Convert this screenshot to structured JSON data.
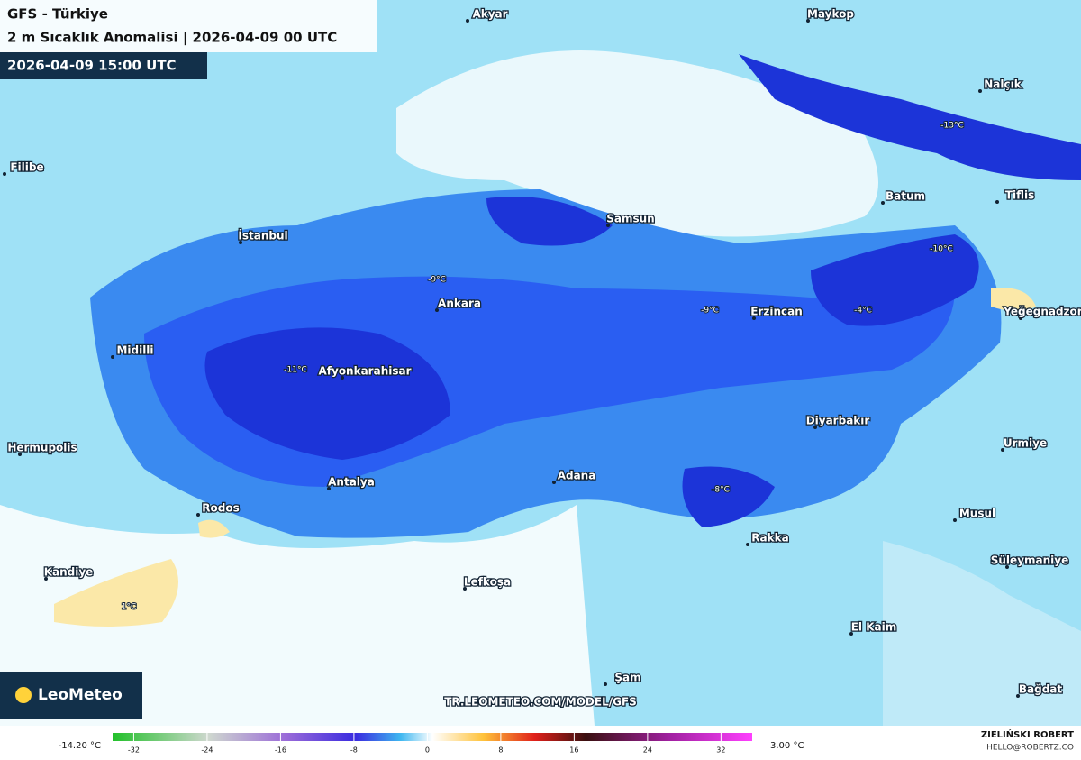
{
  "header": {
    "title": "GFS - Türkiye",
    "subtitle": "2 m Sıcaklık Anomalisi | 2026-04-09 00 UTC",
    "valid_time": "2026-04-09 15:00 UTC"
  },
  "cities": [
    "Akyar",
    "Maykop",
    "Nalçık",
    "Filibe",
    "Batum",
    "Tiflis",
    "Samsun",
    "İstanbul",
    "Ankara",
    "Erzincan",
    "Yeğegnadzor",
    "Midilli",
    "Afyonkarahisar",
    "Diyarbakır",
    "Urmiye",
    "Hermupolis",
    "Antalya",
    "Adana",
    "Rodos",
    "Musul",
    "Rakka",
    "Süleymaniye",
    "Kandiye",
    "Lefkoşa",
    "El Kaim",
    "Şam",
    "Bağdat"
  ],
  "temperature_labels": [
    "-13°C",
    "-10°C",
    "-9°C",
    "-9°C",
    "-4°C",
    "-11°C",
    "-8°C",
    "1°C"
  ],
  "colorbar": {
    "lim": [
      -34.3,
      35.4
    ],
    "ticks": [
      -32,
      -24,
      -16,
      -8,
      0,
      8,
      16,
      24,
      32
    ],
    "min_label": "-14.20 °C",
    "max_label": "3.00 °C"
  },
  "watermark": "TR.LEOMETEO.COM/MODEL/GFS",
  "logo": "LeoMeteo",
  "credit": {
    "name": "ZIELIŃSKI ROBERT",
    "email": "HELLO@ROBERTZ.CO"
  }
}
